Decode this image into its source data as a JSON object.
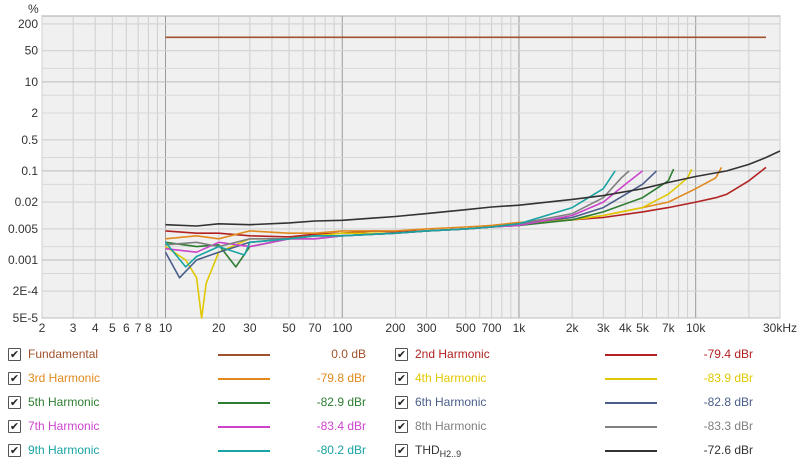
{
  "chart_data": {
    "type": "line",
    "y_unit_label": "%",
    "x_unit_label": "kHz",
    "x_scale": "log",
    "y_scale": "log",
    "xlim": [
      2,
      30000
    ],
    "ylim": [
      5e-05,
      300
    ],
    "grid": true,
    "legend_position": "bottom",
    "x_ticks": [
      {
        "v": 2,
        "label": "2"
      },
      {
        "v": 3,
        "label": "3"
      },
      {
        "v": 4,
        "label": "4"
      },
      {
        "v": 5,
        "label": "5"
      },
      {
        "v": 6,
        "label": "6"
      },
      {
        "v": 7,
        "label": "7"
      },
      {
        "v": 8,
        "label": "8"
      },
      {
        "v": 10,
        "label": "10"
      },
      {
        "v": 20,
        "label": "20"
      },
      {
        "v": 30,
        "label": "30"
      },
      {
        "v": 50,
        "label": "50"
      },
      {
        "v": 70,
        "label": "70"
      },
      {
        "v": 100,
        "label": "100"
      },
      {
        "v": 200,
        "label": "200"
      },
      {
        "v": 300,
        "label": "300"
      },
      {
        "v": 500,
        "label": "500"
      },
      {
        "v": 700,
        "label": "700"
      },
      {
        "v": 1000,
        "label": "1k"
      },
      {
        "v": 2000,
        "label": "2k"
      },
      {
        "v": 3000,
        "label": "3k"
      },
      {
        "v": 4000,
        "label": "4k"
      },
      {
        "v": 5000,
        "label": "5k"
      },
      {
        "v": 7000,
        "label": "7k"
      },
      {
        "v": 10000,
        "label": "10k"
      },
      {
        "v": 30000,
        "label": "30kHz"
      }
    ],
    "y_ticks": [
      {
        "v": 200,
        "label": "200"
      },
      {
        "v": 50,
        "label": "50"
      },
      {
        "v": 10,
        "label": "10"
      },
      {
        "v": 2,
        "label": "2"
      },
      {
        "v": 0.5,
        "label": "0.5"
      },
      {
        "v": 0.1,
        "label": "0.1"
      },
      {
        "v": 0.02,
        "label": "0.02"
      },
      {
        "v": 0.005,
        "label": "0.005"
      },
      {
        "v": 0.001,
        "label": "0.001"
      },
      {
        "v": 0.0002,
        "label": "2E-4"
      },
      {
        "v": 5e-05,
        "label": "5E-5"
      }
    ],
    "series": [
      {
        "name": "Fundamental",
        "color": "#a0522d",
        "value_label": "0.0 dB",
        "points": [
          [
            10,
            100
          ],
          [
            25000,
            100
          ]
        ]
      },
      {
        "name": "2nd Harmonic",
        "color": "#b22222",
        "value_label": "-79.4 dBr",
        "points": [
          [
            10,
            0.0045
          ],
          [
            15,
            0.004
          ],
          [
            20,
            0.004
          ],
          [
            30,
            0.0035
          ],
          [
            50,
            0.0033
          ],
          [
            70,
            0.0038
          ],
          [
            100,
            0.004
          ],
          [
            150,
            0.0045
          ],
          [
            200,
            0.0043
          ],
          [
            300,
            0.0045
          ],
          [
            500,
            0.005
          ],
          [
            700,
            0.0055
          ],
          [
            1000,
            0.0065
          ],
          [
            2000,
            0.008
          ],
          [
            3000,
            0.009
          ],
          [
            5000,
            0.012
          ],
          [
            7000,
            0.015
          ],
          [
            10000,
            0.02
          ],
          [
            13000,
            0.025
          ],
          [
            15000,
            0.03
          ],
          [
            20000,
            0.06
          ],
          [
            25000,
            0.12
          ]
        ]
      },
      {
        "name": "3rd Harmonic",
        "color": "#e08a1e",
        "value_label": "-79.8 dBr",
        "points": [
          [
            10,
            0.003
          ],
          [
            15,
            0.0035
          ],
          [
            20,
            0.003
          ],
          [
            30,
            0.0045
          ],
          [
            50,
            0.004
          ],
          [
            70,
            0.004
          ],
          [
            100,
            0.0045
          ],
          [
            200,
            0.0045
          ],
          [
            300,
            0.005
          ],
          [
            500,
            0.0055
          ],
          [
            700,
            0.006
          ],
          [
            1000,
            0.007
          ],
          [
            2000,
            0.008
          ],
          [
            3000,
            0.01
          ],
          [
            5000,
            0.015
          ],
          [
            7000,
            0.02
          ],
          [
            10000,
            0.04
          ],
          [
            13000,
            0.07
          ],
          [
            14000,
            0.12
          ]
        ]
      },
      {
        "name": "4th Harmonic",
        "color": "#e0c800",
        "value_label": "-83.9 dBr",
        "points": [
          [
            10,
            0.002
          ],
          [
            13,
            0.001
          ],
          [
            15,
            0.0004
          ],
          [
            16,
            5e-05
          ],
          [
            17,
            0.0003
          ],
          [
            20,
            0.0015
          ],
          [
            30,
            0.003
          ],
          [
            50,
            0.003
          ],
          [
            70,
            0.0035
          ],
          [
            100,
            0.004
          ],
          [
            200,
            0.004
          ],
          [
            300,
            0.0045
          ],
          [
            500,
            0.005
          ],
          [
            700,
            0.0055
          ],
          [
            1000,
            0.0065
          ],
          [
            2000,
            0.008
          ],
          [
            3000,
            0.01
          ],
          [
            5000,
            0.015
          ],
          [
            7000,
            0.03
          ],
          [
            9000,
            0.07
          ],
          [
            9500,
            0.11
          ]
        ]
      },
      {
        "name": "5th Harmonic",
        "color": "#2e7d32",
        "value_label": "-82.9 dBr",
        "points": [
          [
            10,
            0.0025
          ],
          [
            15,
            0.002
          ],
          [
            20,
            0.0022
          ],
          [
            25,
            0.0007
          ],
          [
            30,
            0.002
          ],
          [
            50,
            0.003
          ],
          [
            70,
            0.0035
          ],
          [
            100,
            0.0035
          ],
          [
            200,
            0.004
          ],
          [
            300,
            0.0045
          ],
          [
            500,
            0.005
          ],
          [
            700,
            0.0055
          ],
          [
            1000,
            0.006
          ],
          [
            2000,
            0.008
          ],
          [
            3000,
            0.012
          ],
          [
            5000,
            0.025
          ],
          [
            7000,
            0.06
          ],
          [
            7500,
            0.11
          ]
        ]
      },
      {
        "name": "6th Harmonic",
        "color": "#4a5e8a",
        "value_label": "-82.8 dBr",
        "points": [
          [
            10,
            0.0015
          ],
          [
            12,
            0.0004
          ],
          [
            15,
            0.001
          ],
          [
            20,
            0.0015
          ],
          [
            30,
            0.0025
          ],
          [
            50,
            0.003
          ],
          [
            70,
            0.003
          ],
          [
            100,
            0.0035
          ],
          [
            200,
            0.004
          ],
          [
            300,
            0.0045
          ],
          [
            500,
            0.005
          ],
          [
            700,
            0.0055
          ],
          [
            1000,
            0.0065
          ],
          [
            2000,
            0.009
          ],
          [
            3000,
            0.015
          ],
          [
            5000,
            0.05
          ],
          [
            6000,
            0.1
          ]
        ]
      },
      {
        "name": "7th Harmonic",
        "color": "#cc44cc",
        "value_label": "-83.4 dBr",
        "points": [
          [
            10,
            0.0018
          ],
          [
            15,
            0.0015
          ],
          [
            20,
            0.0025
          ],
          [
            30,
            0.002
          ],
          [
            50,
            0.003
          ],
          [
            70,
            0.003
          ],
          [
            100,
            0.0035
          ],
          [
            200,
            0.004
          ],
          [
            300,
            0.0045
          ],
          [
            500,
            0.005
          ],
          [
            700,
            0.0055
          ],
          [
            1000,
            0.006
          ],
          [
            2000,
            0.01
          ],
          [
            3000,
            0.02
          ],
          [
            4000,
            0.05
          ],
          [
            5000,
            0.1
          ]
        ]
      },
      {
        "name": "8th Harmonic",
        "color": "#808080",
        "value_label": "-83.3 dBr",
        "points": [
          [
            10,
            0.0022
          ],
          [
            15,
            0.0025
          ],
          [
            20,
            0.002
          ],
          [
            30,
            0.003
          ],
          [
            50,
            0.003
          ],
          [
            70,
            0.0035
          ],
          [
            100,
            0.0035
          ],
          [
            200,
            0.004
          ],
          [
            300,
            0.0045
          ],
          [
            500,
            0.005
          ],
          [
            700,
            0.0055
          ],
          [
            1000,
            0.0065
          ],
          [
            2000,
            0.011
          ],
          [
            3000,
            0.025
          ],
          [
            3800,
            0.07
          ],
          [
            4200,
            0.1
          ]
        ]
      },
      {
        "name": "9th Harmonic",
        "color": "#1aa3a3",
        "value_label": "-80.2 dBr",
        "points": [
          [
            10,
            0.0025
          ],
          [
            13,
            0.0007
          ],
          [
            15,
            0.0012
          ],
          [
            20,
            0.002
          ],
          [
            28,
            0.0013
          ],
          [
            30,
            0.0025
          ],
          [
            50,
            0.003
          ],
          [
            70,
            0.0035
          ],
          [
            100,
            0.0035
          ],
          [
            200,
            0.004
          ],
          [
            300,
            0.0045
          ],
          [
            500,
            0.005
          ],
          [
            700,
            0.0055
          ],
          [
            1000,
            0.0065
          ],
          [
            2000,
            0.015
          ],
          [
            3000,
            0.04
          ],
          [
            3500,
            0.1
          ]
        ]
      },
      {
        "name": "THD",
        "subscript": "H2..9",
        "color": "#333333",
        "value_label": "-72.6 dBr",
        "points": [
          [
            10,
            0.0062
          ],
          [
            15,
            0.0058
          ],
          [
            20,
            0.0065
          ],
          [
            30,
            0.0062
          ],
          [
            50,
            0.0068
          ],
          [
            70,
            0.0075
          ],
          [
            100,
            0.0078
          ],
          [
            200,
            0.0095
          ],
          [
            300,
            0.011
          ],
          [
            500,
            0.0135
          ],
          [
            700,
            0.0155
          ],
          [
            1000,
            0.017
          ],
          [
            2000,
            0.023
          ],
          [
            3000,
            0.028
          ],
          [
            5000,
            0.04
          ],
          [
            7000,
            0.055
          ],
          [
            10000,
            0.075
          ],
          [
            15000,
            0.1
          ],
          [
            20000,
            0.14
          ],
          [
            25000,
            0.2
          ],
          [
            30000,
            0.28
          ]
        ]
      }
    ]
  }
}
